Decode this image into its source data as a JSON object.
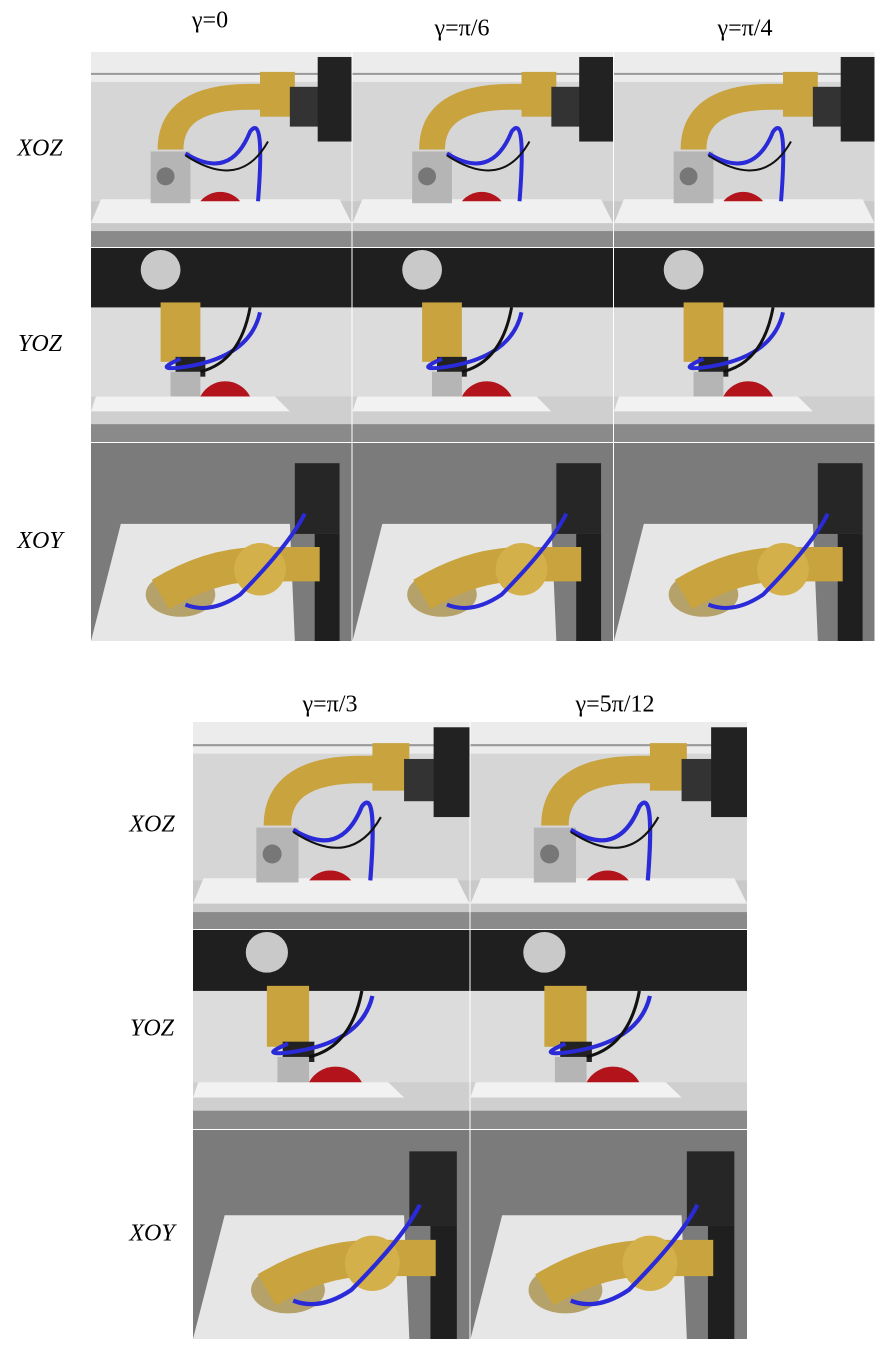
{
  "top": {
    "columns": [
      "γ=0",
      "γ=π/6",
      "γ=π/4"
    ],
    "rows": [
      "XOZ",
      "YOZ",
      "XOY"
    ]
  },
  "bottom": {
    "columns": [
      "γ=π/3",
      "γ=5π/12"
    ],
    "rows": [
      "XOZ",
      "YOZ",
      "XOY"
    ]
  }
}
